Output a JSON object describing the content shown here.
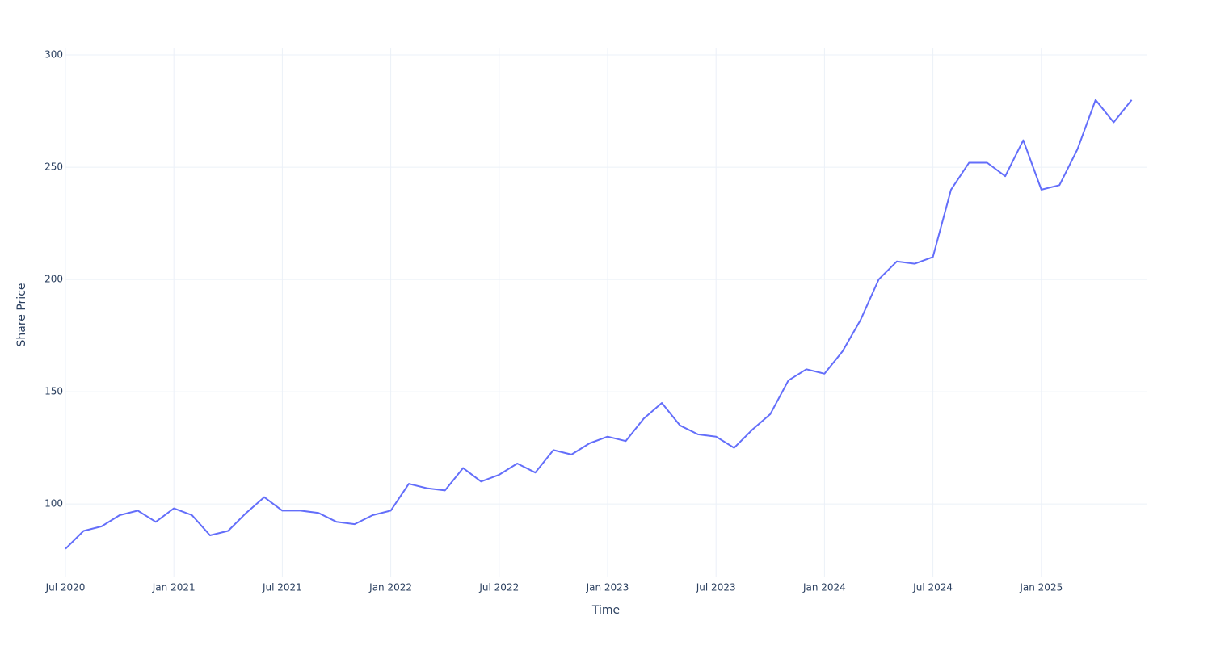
{
  "chart_data": {
    "type": "line",
    "x_label": "Time",
    "y_label": "Share Price",
    "x": [
      "2020-07",
      "2020-08",
      "2020-09",
      "2020-10",
      "2020-11",
      "2020-12",
      "2021-01",
      "2021-02",
      "2021-03",
      "2021-04",
      "2021-05",
      "2021-06",
      "2021-07",
      "2021-08",
      "2021-09",
      "2021-10",
      "2021-11",
      "2021-12",
      "2022-01",
      "2022-02",
      "2022-03",
      "2022-04",
      "2022-05",
      "2022-06",
      "2022-07",
      "2022-08",
      "2022-09",
      "2022-10",
      "2022-11",
      "2022-12",
      "2023-01",
      "2023-02",
      "2023-03",
      "2023-04",
      "2023-05",
      "2023-06",
      "2023-07",
      "2023-08",
      "2023-09",
      "2023-10",
      "2023-11",
      "2023-12",
      "2024-01",
      "2024-02",
      "2024-03",
      "2024-04",
      "2024-05",
      "2024-06",
      "2024-07",
      "2024-08",
      "2024-09",
      "2024-10",
      "2024-11",
      "2024-12",
      "2025-01",
      "2025-02",
      "2025-03",
      "2025-04",
      "2025-05",
      "2025-06"
    ],
    "series": [
      {
        "name": "Share Price",
        "color": "#636efa",
        "values": [
          80,
          88,
          90,
          95,
          97,
          92,
          98,
          95,
          86,
          88,
          96,
          103,
          97,
          97,
          96,
          92,
          91,
          95,
          97,
          109,
          107,
          106,
          116,
          110,
          113,
          118,
          114,
          124,
          122,
          127,
          130,
          128,
          138,
          145,
          135,
          131,
          130,
          125,
          133,
          140,
          155,
          160,
          158,
          168,
          182,
          200,
          208,
          207,
          210,
          240,
          252,
          252,
          246,
          262,
          240,
          242,
          258,
          280,
          270,
          280
        ]
      }
    ],
    "xlim": [
      "2020-07",
      "2025-07"
    ],
    "xticks": [
      {
        "value": "2020-07",
        "label": "Jul 2020"
      },
      {
        "value": "2021-01",
        "label": "Jan 2021"
      },
      {
        "value": "2021-07",
        "label": "Jul 2021"
      },
      {
        "value": "2022-01",
        "label": "Jan 2022"
      },
      {
        "value": "2022-07",
        "label": "Jul 2022"
      },
      {
        "value": "2023-01",
        "label": "Jan 2023"
      },
      {
        "value": "2023-07",
        "label": "Jul 2023"
      },
      {
        "value": "2024-01",
        "label": "Jan 2024"
      },
      {
        "value": "2024-07",
        "label": "Jul 2024"
      },
      {
        "value": "2025-01",
        "label": "Jan 2025"
      }
    ],
    "ylim": [
      67.3,
      302.9
    ],
    "yticks": [
      100,
      150,
      200,
      250,
      300
    ],
    "grid": true
  }
}
